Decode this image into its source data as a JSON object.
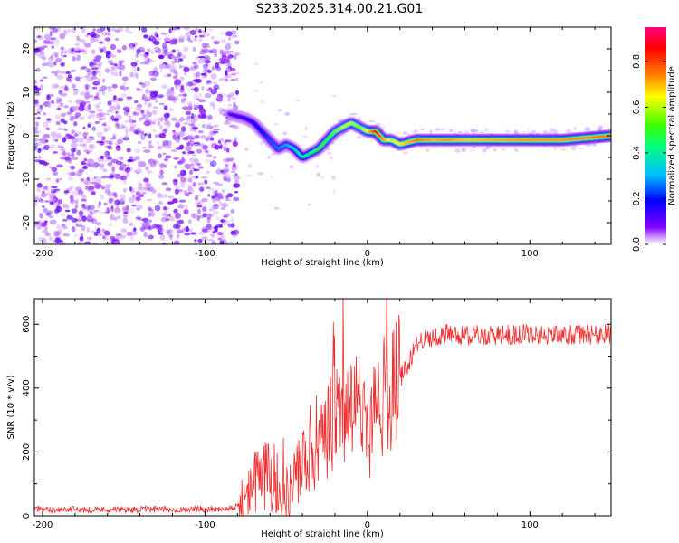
{
  "figure_title": "S233.2025.314.00.21.G01",
  "chart_data": [
    {
      "type": "heatmap",
      "title": "",
      "xlabel": "Height of straight line (km)",
      "ylabel": "Frequency (Hz)",
      "xlim": [
        -205,
        150
      ],
      "ylim": [
        -25,
        25
      ],
      "xticks": [
        -200,
        -100,
        0,
        100
      ],
      "yticks": [
        -20,
        -10,
        0,
        10,
        20
      ],
      "colorbar": {
        "label": "Normalized spectral amplitude",
        "range": [
          0,
          0.95
        ],
        "ticks": [
          "0.0",
          "0.2",
          "0.4",
          "0.6",
          "0.8"
        ],
        "colormap": [
          "#ffffff",
          "#8000ff",
          "#0000ff",
          "#00c0ff",
          "#00ff80",
          "#40ff00",
          "#ffff00",
          "#ff8000",
          "#ff0000",
          "#ff0080"
        ]
      },
      "noise_region": {
        "x_range": [
          -205,
          -80
        ],
        "freq_range": [
          -25,
          25
        ],
        "amplitude_range": [
          0.0,
          0.15
        ]
      },
      "ridge": {
        "x": [
          -85,
          -75,
          -70,
          -65,
          -60,
          -55,
          -50,
          -45,
          -40,
          -35,
          -30,
          -25,
          -20,
          -15,
          -10,
          -5,
          0,
          5,
          10,
          15,
          20,
          30,
          40,
          50,
          60,
          80,
          100,
          120,
          150
        ],
        "freq": [
          5,
          4,
          3,
          1,
          -1,
          -3,
          -2,
          -3,
          -5,
          -4,
          -3,
          -1,
          1,
          2,
          3,
          2,
          1,
          1,
          -1,
          -1,
          -2,
          -1,
          -1,
          -1,
          -1,
          -1,
          -1,
          -1,
          0
        ],
        "amplitude": [
          0.15,
          0.18,
          0.2,
          0.22,
          0.25,
          0.28,
          0.3,
          0.35,
          0.4,
          0.45,
          0.5,
          0.5,
          0.55,
          0.6,
          0.6,
          0.55,
          0.65,
          0.85,
          0.7,
          0.6,
          0.65,
          0.75,
          0.7,
          0.72,
          0.68,
          0.7,
          0.72,
          0.72,
          0.75
        ]
      }
    },
    {
      "type": "line",
      "title": "",
      "xlabel": "Height of straight line (km)",
      "ylabel": "SNR (10 * v/v)",
      "xlim": [
        -205,
        150
      ],
      "ylim": [
        0,
        680
      ],
      "xticks": [
        -200,
        -100,
        0,
        100
      ],
      "yticks": [
        0,
        200,
        400,
        600
      ],
      "series": [
        {
          "name": "SNR",
          "color": "#f03030",
          "x": [
            -205,
            -180,
            -150,
            -120,
            -90,
            -80,
            -75,
            -70,
            -65,
            -60,
            -55,
            -50,
            -45,
            -40,
            -35,
            -30,
            -25,
            -20,
            -15,
            -10,
            -5,
            0,
            5,
            10,
            15,
            20,
            25,
            30,
            40,
            50,
            60,
            80,
            100,
            120,
            150
          ],
          "y": [
            20,
            20,
            20,
            20,
            22,
            30,
            45,
            100,
            130,
            120,
            100,
            60,
            110,
            160,
            210,
            200,
            250,
            310,
            330,
            340,
            330,
            250,
            350,
            380,
            400,
            430,
            470,
            540,
            560,
            570,
            565,
            565,
            570,
            565,
            570
          ]
        }
      ]
    }
  ]
}
